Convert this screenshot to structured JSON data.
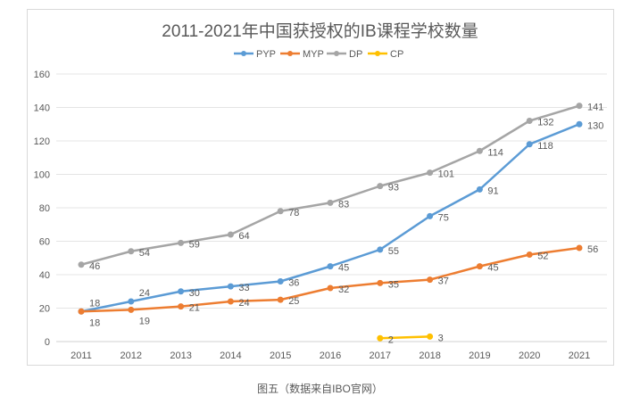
{
  "chart_data": {
    "type": "line",
    "title": "2011-2021年中国获授权的IB课程学校数量",
    "categories": [
      "2011",
      "2012",
      "2013",
      "2014",
      "2015",
      "2016",
      "2017",
      "2018",
      "2019",
      "2020",
      "2021"
    ],
    "series": [
      {
        "name": "PYP",
        "color": "#5b9bd5",
        "values": [
          18,
          24,
          30,
          33,
          36,
          45,
          55,
          75,
          91,
          118,
          130
        ]
      },
      {
        "name": "MYP",
        "color": "#ed7d31",
        "values": [
          18,
          19,
          21,
          24,
          25,
          32,
          35,
          37,
          45,
          52,
          56
        ]
      },
      {
        "name": "DP",
        "color": "#a5a5a5",
        "values": [
          46,
          54,
          59,
          64,
          78,
          83,
          93,
          101,
          114,
          132,
          141
        ]
      },
      {
        "name": "CP",
        "color": "#ffc000",
        "values": [
          null,
          null,
          null,
          null,
          null,
          null,
          2,
          3,
          null,
          null,
          null
        ]
      }
    ],
    "ylim": [
      0,
      160
    ],
    "yticks": [
      0,
      20,
      40,
      60,
      80,
      100,
      120,
      140,
      160
    ],
    "grid": true,
    "legend": "top",
    "data_labels": true
  },
  "caption": "图五（数据来自IBO官网）"
}
